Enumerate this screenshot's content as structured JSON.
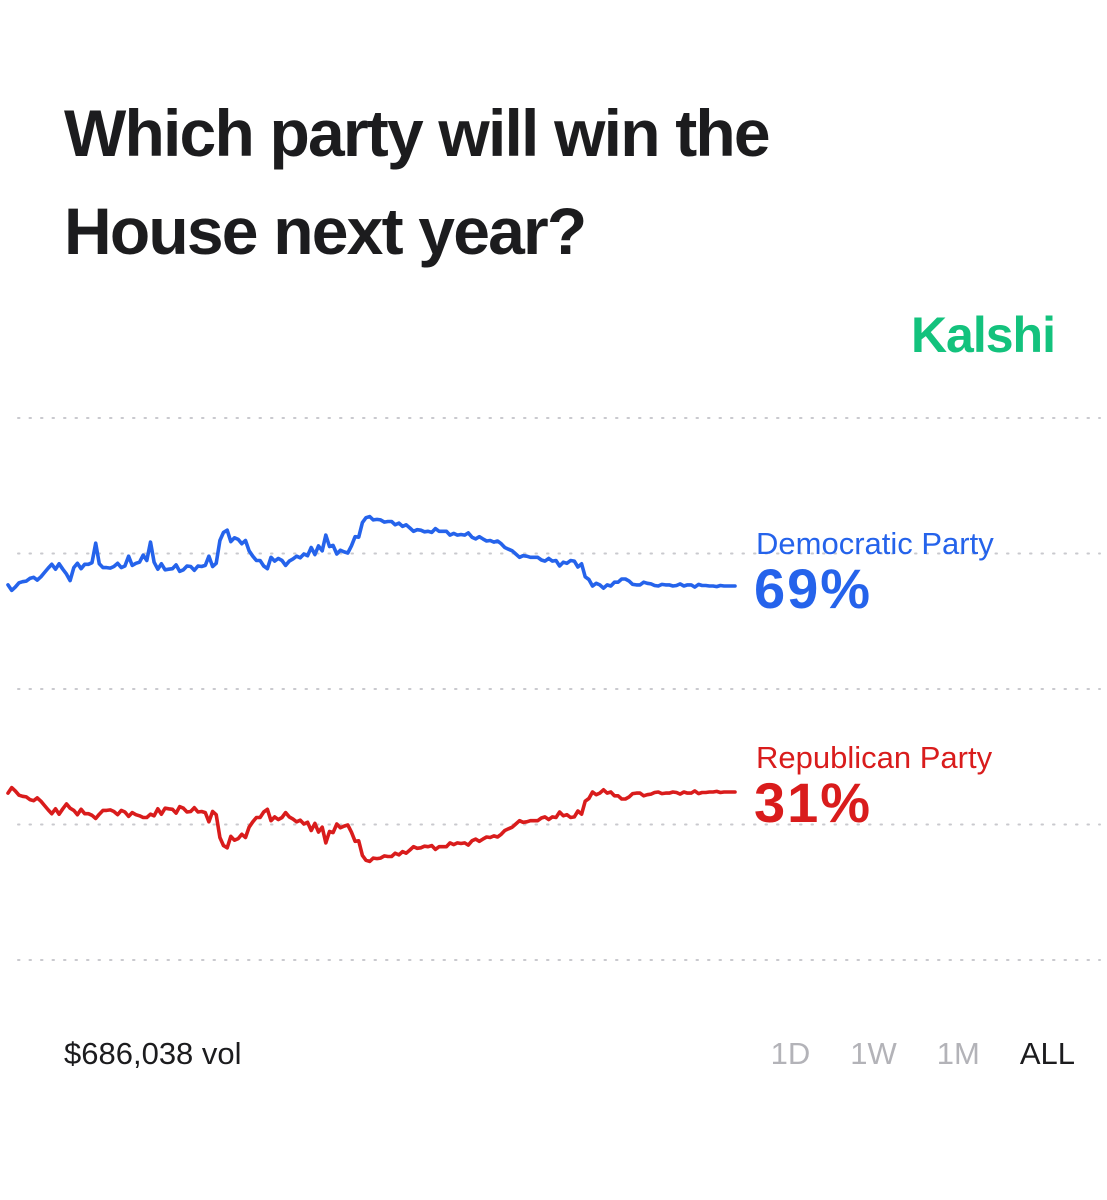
{
  "title": "Which party will win the House next year?",
  "brand": "Kalshi",
  "volume": "$686,038 vol",
  "range_tabs": [
    "1D",
    "1W",
    "1M",
    "ALL"
  ],
  "active_range": "ALL",
  "colors": {
    "democratic": "#2563eb",
    "republican": "#d91c1c",
    "brand": "#13c27d",
    "grid": "#c9c9ce"
  },
  "chart_data": {
    "type": "line",
    "x_index_count": 200,
    "ylim": [
      0,
      100
    ],
    "gridlines": [
      0,
      25,
      50,
      75,
      100
    ],
    "series": [
      {
        "name": "Democratic Party",
        "label": "69%",
        "color": "#2563eb",
        "values": [
          69.2,
          68.2,
          68.8,
          69.6,
          69.8,
          69.9,
          70.4,
          70.6,
          70.1,
          70.7,
          71.5,
          72.3,
          73.0,
          72.1,
          73.1,
          72.1,
          71.2,
          70.0,
          72.4,
          73.2,
          72.2,
          73.0,
          73.0,
          73.3,
          76.9,
          73.1,
          72.4,
          72.4,
          72.3,
          72.6,
          73.2,
          72.4,
          72.7,
          74.5,
          72.8,
          73.2,
          73.4,
          74.7,
          73.7,
          77.1,
          73.4,
          72.1,
          73.1,
          72.0,
          72.1,
          72.2,
          72.9,
          71.7,
          72.0,
          72.7,
          72.6,
          71.9,
          72.7,
          72.6,
          72.8,
          74.5,
          72.6,
          73.2,
          77.4,
          78.9,
          79.3,
          77.2,
          77.9,
          77.6,
          76.8,
          77.4,
          75.5,
          74.5,
          73.7,
          73.7,
          72.7,
          72.2,
          74.3,
          73.6,
          74.1,
          73.7,
          72.8,
          73.6,
          74.0,
          74.5,
          74.2,
          74.9,
          74.6,
          76.1,
          74.8,
          76.4,
          75.5,
          78.4,
          76.3,
          76.5,
          74.9,
          75.6,
          75.3,
          75.1,
          76.4,
          78.1,
          78.0,
          80.7,
          81.6,
          81.8,
          81.2,
          81.3,
          81.2,
          80.8,
          80.9,
          80.9,
          80.3,
          80.6,
          80.0,
          80.3,
          79.7,
          79.1,
          79.4,
          79.3,
          79.0,
          79.1,
          78.9,
          79.6,
          79.1,
          79.1,
          79.1,
          78.4,
          78.7,
          78.4,
          78.5,
          78.4,
          78.8,
          78.0,
          77.7,
          78.1,
          77.7,
          77.3,
          77.4,
          77.1,
          77.3,
          76.8,
          76.1,
          75.8,
          75.5,
          74.9,
          74.3,
          74.6,
          74.5,
          74.3,
          74.3,
          74.3,
          73.8,
          73.6,
          74.1,
          73.6,
          73.7,
          72.7,
          73.4,
          73.2,
          73.7,
          73.6,
          72.5,
          73.1,
          70.7,
          70.2,
          69.0,
          69.5,
          69.2,
          68.6,
          69.2,
          69.0,
          69.7,
          69.7,
          70.3,
          70.3,
          69.9,
          69.3,
          69.2,
          69.2,
          69.7,
          69.5,
          69.4,
          69.1,
          69.0,
          69.3,
          69.2,
          69.2,
          69.0,
          69.1,
          69.4,
          69.0,
          69.2,
          69.2,
          68.8,
          69.3,
          69.1,
          69.1,
          69.0,
          69.0,
          68.9,
          69.1,
          69.0,
          69.0,
          69.0,
          69.0
        ]
      },
      {
        "name": "Republican Party",
        "label": "31%",
        "color": "#d91c1c",
        "values": [
          30.8,
          31.8,
          31.2,
          30.4,
          30.2,
          30.1,
          29.6,
          29.4,
          29.9,
          29.3,
          28.5,
          27.7,
          27.0,
          27.9,
          26.9,
          27.9,
          28.8,
          28.0,
          27.6,
          26.8,
          27.8,
          27.0,
          27.0,
          26.7,
          26.1,
          26.9,
          27.6,
          27.6,
          27.7,
          27.4,
          26.8,
          27.6,
          27.3,
          26.5,
          27.2,
          26.8,
          26.6,
          26.3,
          26.3,
          26.9,
          26.6,
          27.9,
          26.9,
          28.0,
          27.9,
          27.8,
          27.1,
          28.3,
          28.0,
          27.3,
          27.4,
          28.1,
          27.3,
          27.4,
          27.2,
          25.5,
          27.4,
          26.8,
          22.6,
          21.1,
          20.7,
          22.8,
          22.1,
          22.4,
          23.2,
          22.6,
          24.5,
          25.5,
          26.3,
          26.3,
          27.3,
          27.8,
          25.7,
          26.4,
          25.9,
          26.3,
          27.2,
          26.4,
          26.0,
          25.5,
          25.8,
          25.1,
          25.4,
          23.9,
          25.2,
          23.6,
          24.5,
          21.6,
          23.7,
          23.5,
          25.1,
          24.4,
          24.7,
          24.9,
          23.6,
          21.9,
          22.0,
          19.3,
          18.4,
          18.2,
          18.8,
          18.7,
          18.8,
          19.2,
          19.1,
          19.1,
          19.7,
          19.4,
          20.0,
          19.7,
          20.3,
          20.9,
          20.6,
          20.7,
          21.0,
          20.9,
          21.1,
          20.4,
          20.9,
          20.9,
          20.9,
          21.6,
          21.3,
          21.6,
          21.5,
          21.6,
          21.2,
          22.0,
          22.3,
          21.9,
          22.3,
          22.7,
          22.6,
          22.9,
          22.7,
          23.2,
          23.9,
          24.2,
          24.5,
          25.1,
          25.7,
          25.4,
          25.5,
          25.7,
          25.7,
          25.7,
          26.2,
          26.4,
          25.9,
          26.4,
          26.3,
          27.3,
          26.6,
          26.8,
          26.3,
          26.4,
          27.5,
          26.9,
          29.3,
          29.8,
          31.0,
          30.5,
          30.8,
          31.4,
          30.8,
          31.0,
          30.3,
          30.3,
          29.7,
          29.7,
          30.1,
          30.7,
          30.8,
          30.8,
          30.3,
          30.5,
          30.6,
          30.9,
          31.0,
          30.7,
          30.8,
          30.8,
          31.0,
          30.9,
          30.6,
          31.0,
          30.8,
          30.8,
          31.2,
          30.7,
          30.9,
          30.9,
          31.0,
          31.0,
          31.1,
          30.9,
          31.0,
          31.0,
          31.0,
          31.0
        ]
      }
    ],
    "grid": true,
    "legend": "right-of-line-end"
  }
}
